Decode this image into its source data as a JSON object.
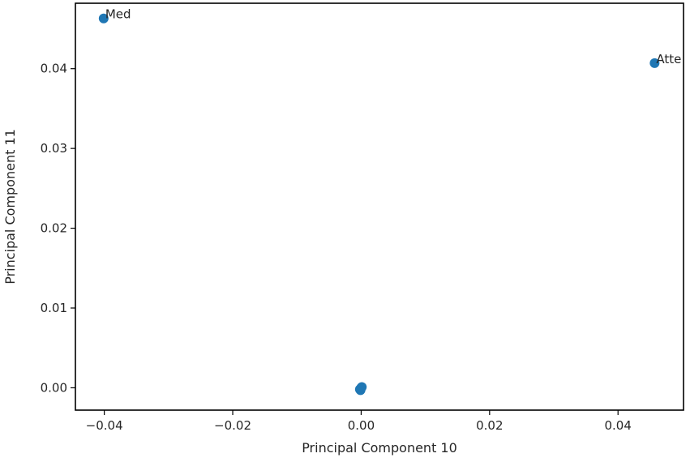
{
  "chart_data": {
    "type": "scatter",
    "xlabel": "Principal Component 10",
    "ylabel": "Principal Component 11",
    "xlim": [
      -0.0445,
      0.0502
    ],
    "ylim": [
      -0.0028,
      0.0482
    ],
    "xticks": [
      -0.04,
      -0.02,
      0.0,
      0.02,
      0.04
    ],
    "xtick_labels": [
      "−0.04",
      "−0.02",
      "0.00",
      "0.02",
      "0.04"
    ],
    "yticks": [
      0.0,
      0.01,
      0.02,
      0.03,
      0.04
    ],
    "ytick_labels": [
      "0.00",
      "0.01",
      "0.02",
      "0.03",
      "0.04"
    ],
    "grid": false,
    "point_color": "#1f77b4",
    "points": [
      {
        "label": "Med",
        "x": -0.0401,
        "y": 0.0463
      },
      {
        "label": "Atte",
        "x": 0.0457,
        "y": 0.0407
      },
      {
        "label": "",
        "x": -0.0002,
        "y": -0.0002
      },
      {
        "label": "",
        "x": 0.0,
        "y": 0.0
      },
      {
        "label": "",
        "x": -0.0001,
        "y": -0.0003
      },
      {
        "label": "",
        "x": 0.0001,
        "y": 0.0001
      }
    ]
  }
}
